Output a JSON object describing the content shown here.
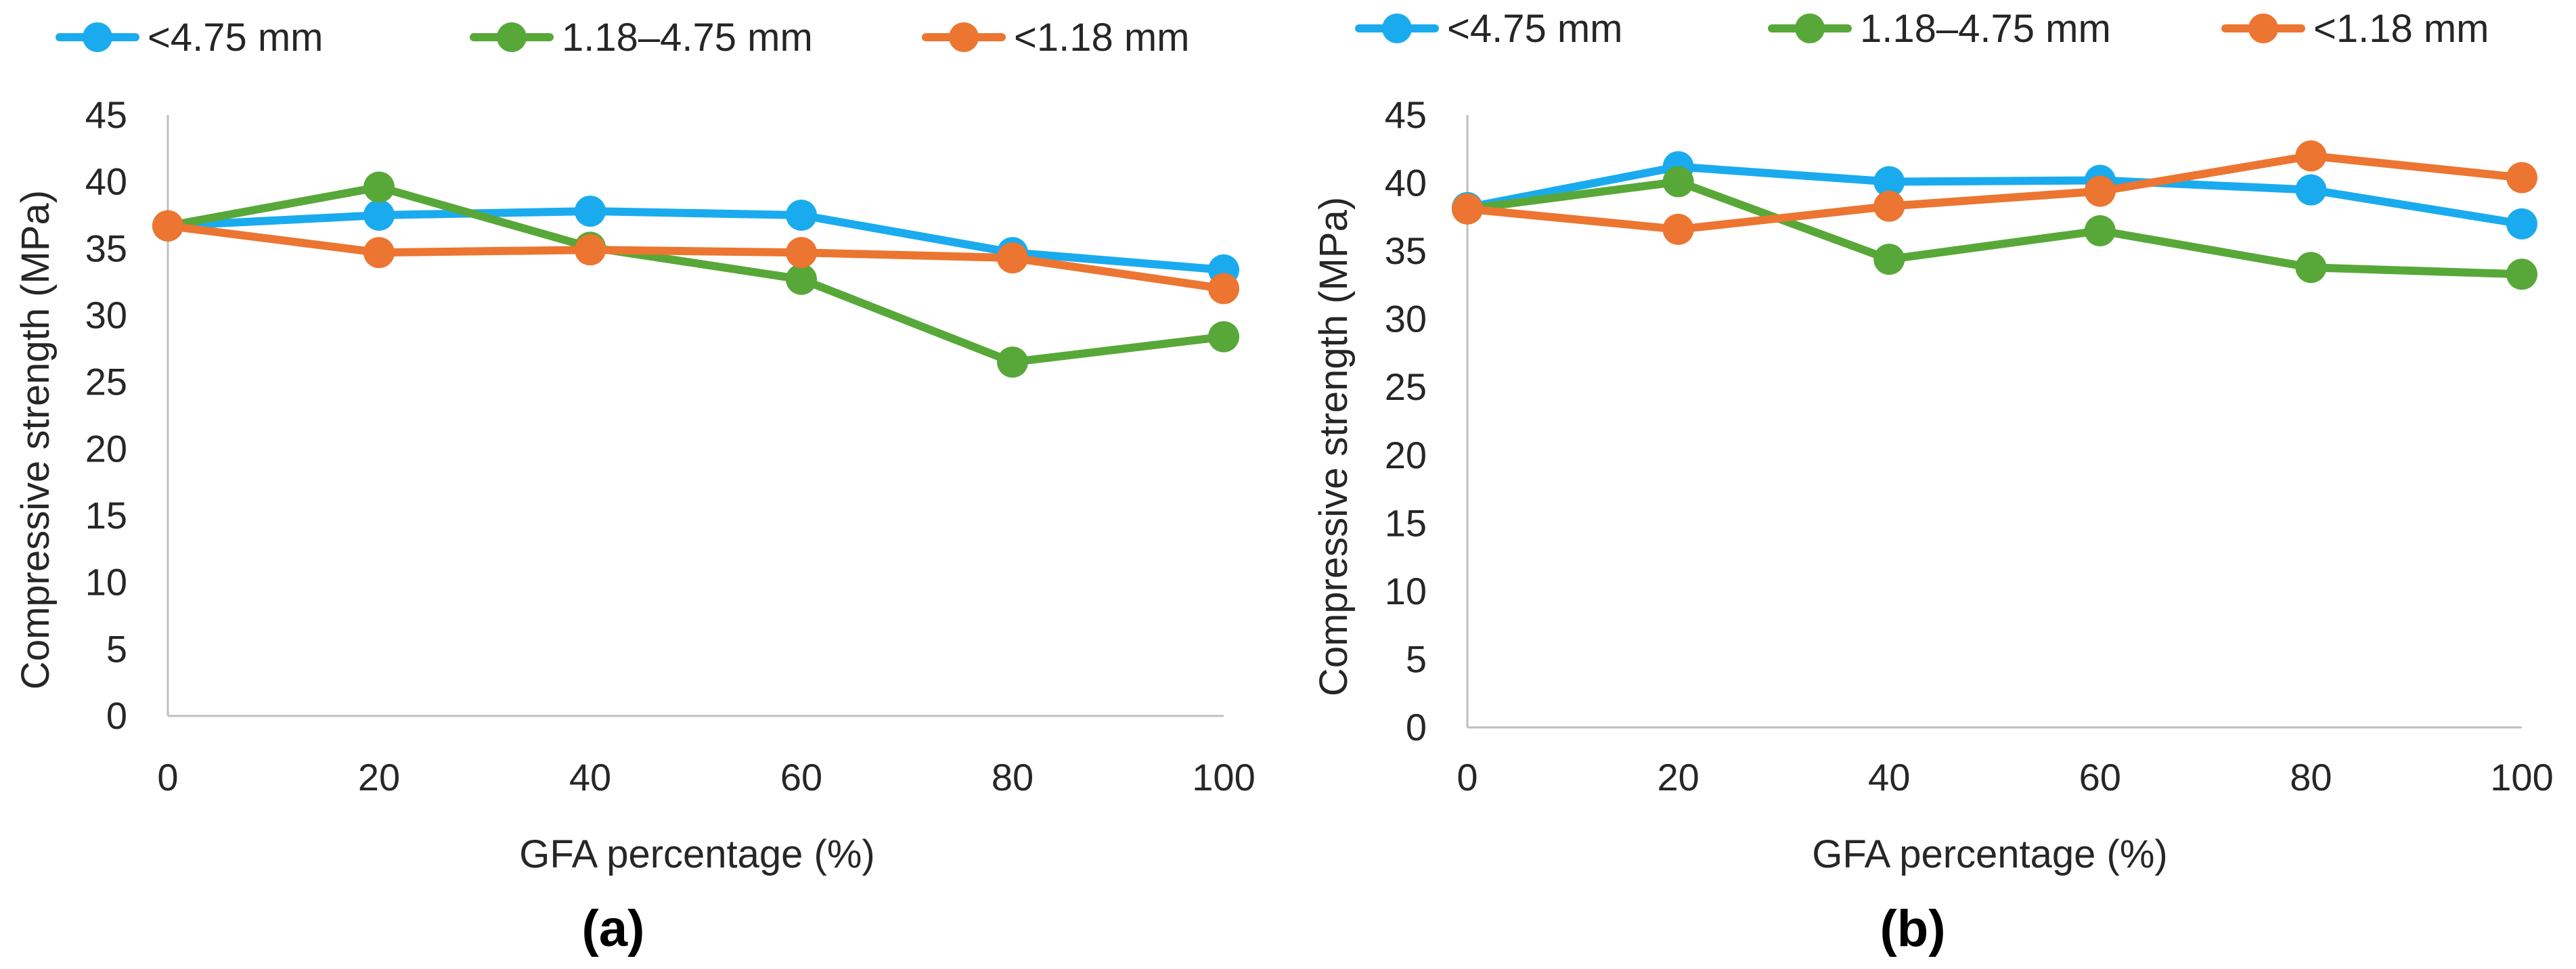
{
  "chart_data": [
    {
      "type": "line",
      "panel_label": "(a)",
      "x": [
        0,
        20,
        40,
        60,
        80,
        100
      ],
      "xlabel": "GFA percentage (%)",
      "ylabel": "Compressive strength (MPa)",
      "xlim": [
        0,
        100
      ],
      "ylim": [
        0,
        45
      ],
      "yticks": [
        0,
        5,
        10,
        15,
        20,
        25,
        30,
        35,
        40,
        45
      ],
      "grid": false,
      "legend_position": "top",
      "series": [
        {
          "name": "<4.75 mm",
          "color": "#1aabef",
          "values": [
            36.7,
            37.5,
            37.8,
            37.5,
            34.7,
            33.4
          ]
        },
        {
          "name": "1.18–4.75 mm",
          "color": "#57a838",
          "values": [
            36.7,
            39.6,
            35.1,
            32.7,
            26.5,
            28.4
          ]
        },
        {
          "name": "<1.18 mm",
          "color": "#ec7531",
          "values": [
            36.7,
            34.7,
            34.9,
            34.7,
            34.3,
            32.0
          ]
        }
      ]
    },
    {
      "type": "line",
      "panel_label": "(b)",
      "x": [
        0,
        20,
        40,
        60,
        80,
        100
      ],
      "xlabel": "GFA percentage (%)",
      "ylabel": "Compressive strength (MPa)",
      "xlim": [
        0,
        100
      ],
      "ylim": [
        0,
        45
      ],
      "yticks": [
        0,
        5,
        10,
        15,
        20,
        25,
        30,
        35,
        40,
        45
      ],
      "grid": false,
      "legend_position": "top",
      "series": [
        {
          "name": "<4.75 mm",
          "color": "#1aabef",
          "values": [
            38.2,
            41.2,
            40.1,
            40.2,
            39.5,
            37.0
          ]
        },
        {
          "name": "1.18–4.75 mm",
          "color": "#57a838",
          "values": [
            38.1,
            40.1,
            34.4,
            36.5,
            33.8,
            33.3
          ]
        },
        {
          "name": "<1.18 mm",
          "color": "#ec7531",
          "values": [
            38.1,
            36.6,
            38.3,
            39.4,
            42.0,
            40.4
          ]
        }
      ]
    }
  ]
}
